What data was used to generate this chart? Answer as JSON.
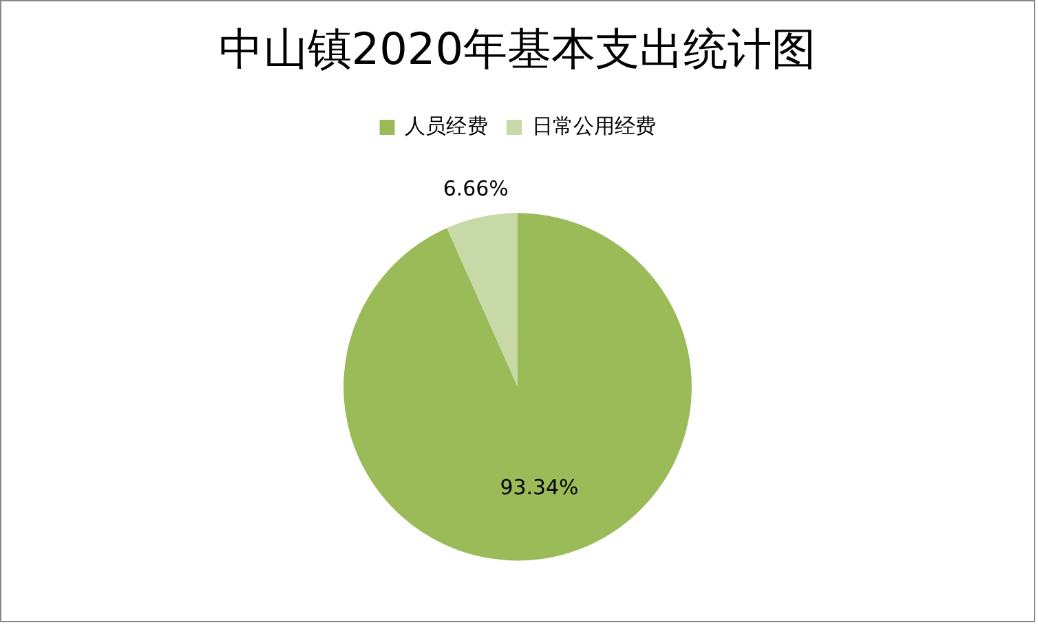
{
  "chart_data": {
    "type": "pie",
    "title": "中山镇2020年基本支出统计图",
    "categories": [
      "人员经费",
      "日常公用经费"
    ],
    "values": [
      93.34,
      6.66
    ],
    "colors": [
      "#9bbb59",
      "#c6d9a6"
    ],
    "value_labels": [
      "93.34%",
      "6.66%"
    ],
    "legend": "top"
  }
}
